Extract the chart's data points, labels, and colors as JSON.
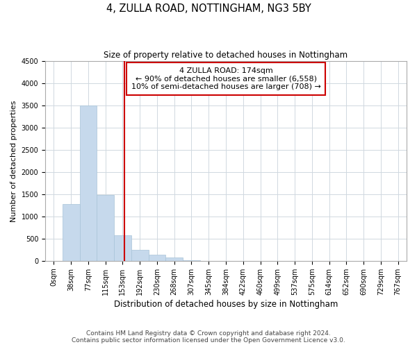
{
  "title": "4, ZULLA ROAD, NOTTINGHAM, NG3 5BY",
  "subtitle": "Size of property relative to detached houses in Nottingham",
  "xlabel": "Distribution of detached houses by size in Nottingham",
  "ylabel": "Number of detached properties",
  "bar_labels": [
    "0sqm",
    "38sqm",
    "77sqm",
    "115sqm",
    "153sqm",
    "192sqm",
    "230sqm",
    "268sqm",
    "307sqm",
    "345sqm",
    "384sqm",
    "422sqm",
    "460sqm",
    "499sqm",
    "537sqm",
    "575sqm",
    "614sqm",
    "652sqm",
    "690sqm",
    "729sqm",
    "767sqm"
  ],
  "bar_values": [
    0,
    1280,
    3500,
    1480,
    580,
    250,
    140,
    75,
    20,
    5,
    0,
    0,
    0,
    0,
    0,
    0,
    0,
    0,
    0,
    0,
    0
  ],
  "bar_color": "#c6d9ec",
  "bar_edge_color": "#a8c4d8",
  "vline_x": 4.595,
  "vline_color": "#cc0000",
  "ylim": [
    0,
    4500
  ],
  "yticks": [
    0,
    500,
    1000,
    1500,
    2000,
    2500,
    3000,
    3500,
    4000,
    4500
  ],
  "annotation_title": "4 ZULLA ROAD: 174sqm",
  "annotation_line1": "← 90% of detached houses are smaller (6,558)",
  "annotation_line2": "10% of semi-detached houses are larger (708) →",
  "annotation_box_color": "white",
  "annotation_box_edge": "#cc0000",
  "footnote1": "Contains HM Land Registry data © Crown copyright and database right 2024.",
  "footnote2": "Contains public sector information licensed under the Open Government Licence v3.0.",
  "title_fontsize": 10.5,
  "subtitle_fontsize": 8.5,
  "ylabel_fontsize": 8,
  "xlabel_fontsize": 8.5,
  "ann_fontsize": 8,
  "tick_fontsize": 7,
  "footnote_fontsize": 6.5,
  "grid_color": "#d0d8e0"
}
